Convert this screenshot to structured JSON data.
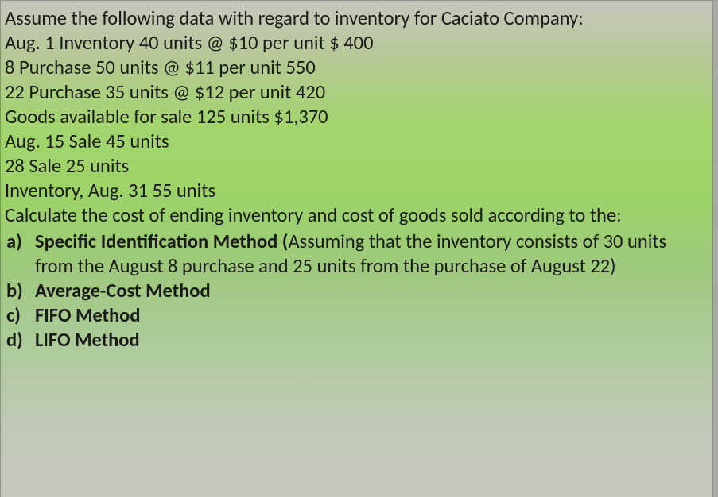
{
  "intro": "Assume the following data with regard to inventory for Caciato Company:",
  "lines": [
    "Aug. 1 Inventory 40 units @ $10 per unit $ 400",
    "8 Purchase 50 units @ $11 per unit 550",
    "22 Purchase 35 units @ $12 per unit 420",
    "Goods available for sale 125 units $1,370",
    "Aug. 15 Sale 45 units",
    "28 Sale 25 units",
    "Inventory, Aug. 31 55 units"
  ],
  "calc_prompt": "Calculate the cost of ending inventory and cost of goods sold according to the:",
  "items": {
    "a": {
      "marker": "a)",
      "bold": "Specific Identification Method (",
      "rest": "Assuming that the inventory consists of 30 units from the August 8 purchase and 25 units from the purchase of August 22)"
    },
    "b": {
      "marker": "b)",
      "bold": "Average-Cost Method"
    },
    "c": {
      "marker": "c)",
      "bold": "FIFO Method"
    },
    "d": {
      "marker": "d)",
      "bold": "LIFO Method"
    }
  }
}
